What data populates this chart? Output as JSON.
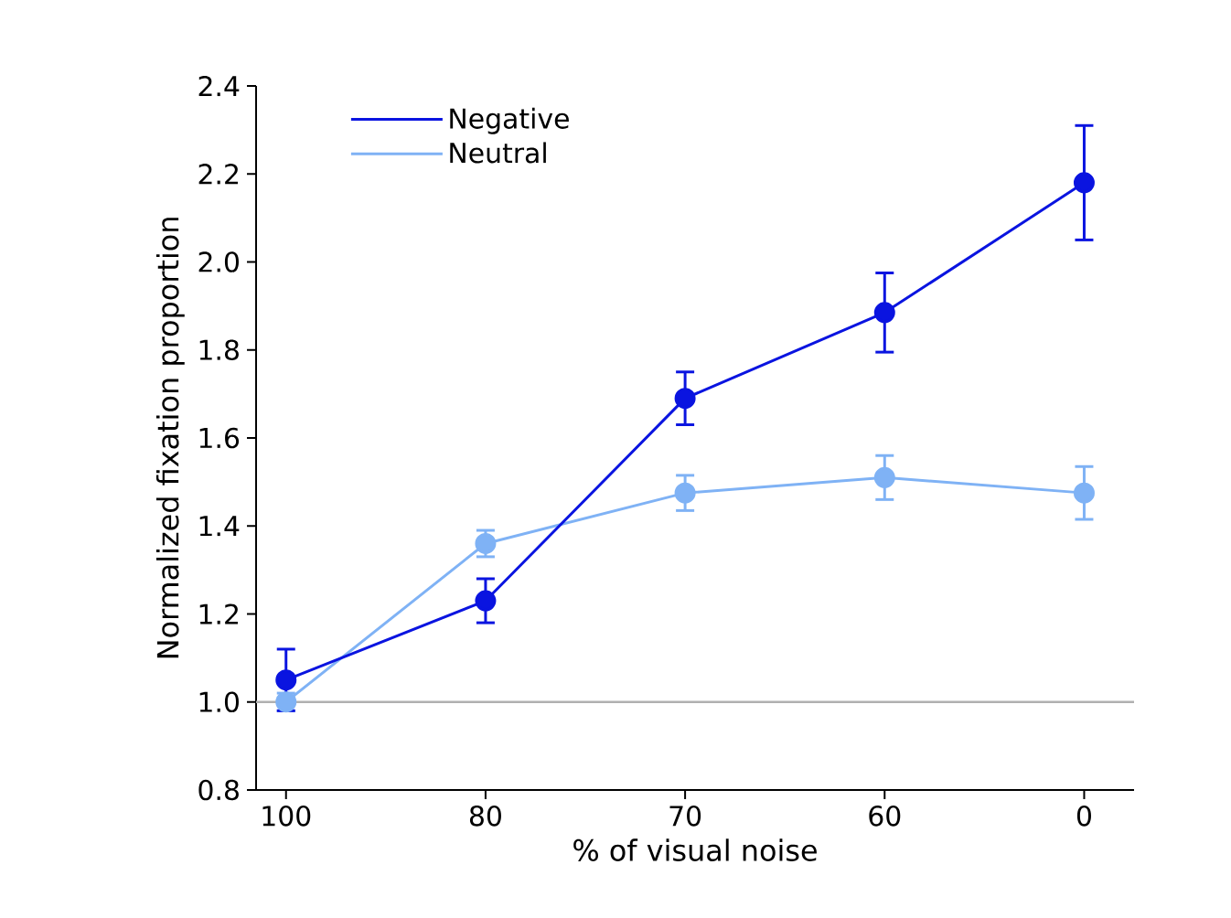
{
  "chart_data": {
    "type": "line",
    "xlabel": "% of visual noise",
    "ylabel": "Normalized fixation proportion",
    "categories": [
      "100",
      "80",
      "70",
      "60",
      "0"
    ],
    "series": [
      {
        "name": "Negative",
        "color": "#0a14e0",
        "values": [
          1.05,
          1.23,
          1.69,
          1.885,
          2.18
        ],
        "errors": [
          0.07,
          0.05,
          0.06,
          0.09,
          0.13
        ]
      },
      {
        "name": "Neutral",
        "color": "#7fb2f5",
        "values": [
          1.0,
          1.36,
          1.475,
          1.51,
          1.475
        ],
        "errors": [
          0.02,
          0.03,
          0.04,
          0.05,
          0.06
        ]
      }
    ],
    "ylim": [
      0.8,
      2.4
    ],
    "yticks": [
      0.8,
      {
        "value": 1,
        "label": "1.0"
      },
      1.2,
      1.4,
      1.6,
      1.8,
      {
        "value": 2,
        "label": "2.0"
      },
      2.2,
      2.4
    ],
    "ref_lines": [
      {
        "axis": "y",
        "value": 1,
        "color": "#b0b0b0"
      }
    ],
    "marker": "circle",
    "legend": "top left",
    "grid": false
  }
}
